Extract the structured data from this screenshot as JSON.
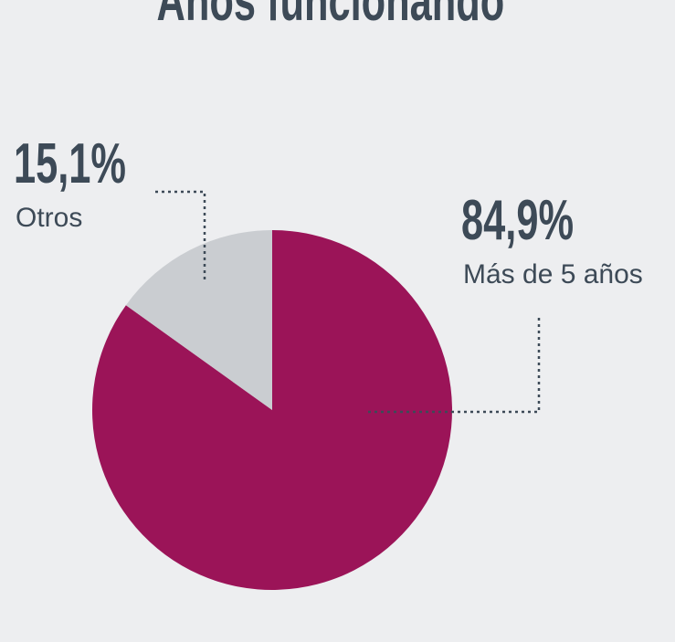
{
  "chart_data": {
    "type": "pie",
    "title": "Años funcionando",
    "categories": [
      "Más de 5 años",
      "Otros"
    ],
    "values": [
      84.9,
      15.1
    ],
    "value_labels": [
      "84,9%",
      "15,1%"
    ],
    "colors": [
      "#9b1458",
      "#cacdd1"
    ]
  }
}
